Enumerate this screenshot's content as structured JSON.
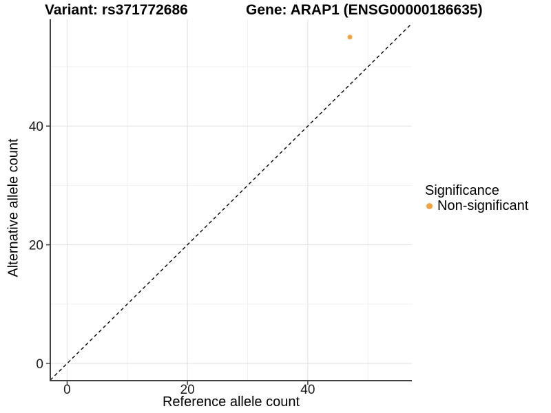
{
  "header": {
    "variant_title": "Variant: rs371772686",
    "gene_title": "Gene: ARAP1 (ENSG00000186635)"
  },
  "legend": {
    "title": "Significance",
    "items": [
      {
        "label": "Non-significant",
        "color": "#F9A33C"
      }
    ]
  },
  "chart_data": {
    "type": "scatter",
    "title": "Variant: rs371772686 | Gene: ARAP1 (ENSG00000186635)",
    "xlabel": "Reference allele count",
    "ylabel": "Alternative allele count",
    "xlim": [
      -2.8,
      57.3
    ],
    "ylim": [
      -2.9,
      58.0
    ],
    "x_major_ticks": [
      0,
      20,
      40
    ],
    "y_major_ticks": [
      0,
      20,
      40
    ],
    "x_minor_gridlines": [
      10,
      30,
      50
    ],
    "y_minor_gridlines": [
      10,
      30,
      50
    ],
    "grid": "major and minor gridlines on",
    "legend_position": "right",
    "series": [
      {
        "name": "Non-significant",
        "color": "#F9A33C",
        "marker": "circle",
        "points": [
          {
            "x": 47,
            "y": 55
          }
        ]
      }
    ],
    "reference_line": {
      "kind": "identity y=x diagonal",
      "style": "dashed",
      "color": "#000000"
    }
  },
  "colors": {
    "background": "#FFFFFF",
    "axis_line": "#404040",
    "tick_label": "#1A1A1A",
    "grid_major": "#E5E5E5",
    "grid_minor": "#F1F1F1",
    "dashed_line": "#000000"
  }
}
